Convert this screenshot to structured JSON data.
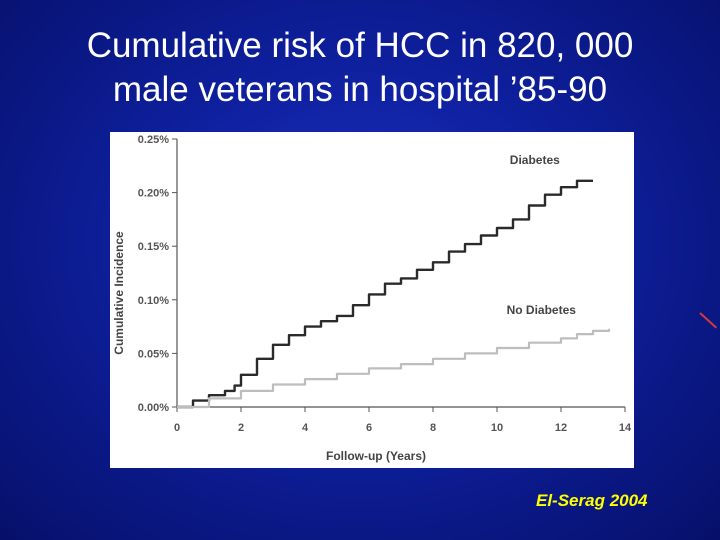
{
  "slide": {
    "title_line1": "Cumulative risk of HCC in 820, 000",
    "title_line2": "male veterans in hospital ’85-90",
    "citation": "El-Serag 2004",
    "background_color": "#0e1f9c",
    "citation_color": "#ffff00"
  },
  "chart_data": {
    "type": "line",
    "xlabel": "Follow-up (Years)",
    "ylabel": "Cumulative Incidence",
    "xlim": [
      0,
      14
    ],
    "ylim": [
      0,
      0.25
    ],
    "x_ticks": [
      "0",
      "2",
      "4",
      "6",
      "8",
      "10",
      "12",
      "14"
    ],
    "y_ticks": [
      "0.00%",
      "0.05%",
      "0.10%",
      "0.15%",
      "0.20%",
      "0.25%"
    ],
    "grid": false,
    "series": [
      {
        "name": "Diabetes",
        "color": "#2a2a2a",
        "x": [
          0,
          0.5,
          1,
          1.5,
          1.8,
          2,
          2.5,
          3,
          3.5,
          4,
          4.5,
          5,
          5.5,
          6,
          6.5,
          7,
          7.5,
          8,
          8.5,
          9,
          9.5,
          10,
          10.5,
          11,
          11.5,
          12,
          12.5,
          13
        ],
        "values": [
          0,
          0.006,
          0.011,
          0.015,
          0.02,
          0.03,
          0.045,
          0.058,
          0.067,
          0.075,
          0.08,
          0.085,
          0.095,
          0.105,
          0.115,
          0.12,
          0.128,
          0.135,
          0.145,
          0.152,
          0.16,
          0.167,
          0.175,
          0.188,
          0.198,
          0.205,
          0.211,
          0.211
        ]
      },
      {
        "name": "No Diabetes",
        "color": "#bdbdbd",
        "x": [
          0,
          1,
          2,
          3,
          4,
          5,
          6,
          7,
          8,
          9,
          10,
          11,
          12,
          12.5,
          13,
          13.5
        ],
        "values": [
          0,
          0.008,
          0.015,
          0.021,
          0.026,
          0.031,
          0.036,
          0.04,
          0.045,
          0.05,
          0.055,
          0.06,
          0.064,
          0.068,
          0.071,
          0.073
        ]
      }
    ]
  }
}
